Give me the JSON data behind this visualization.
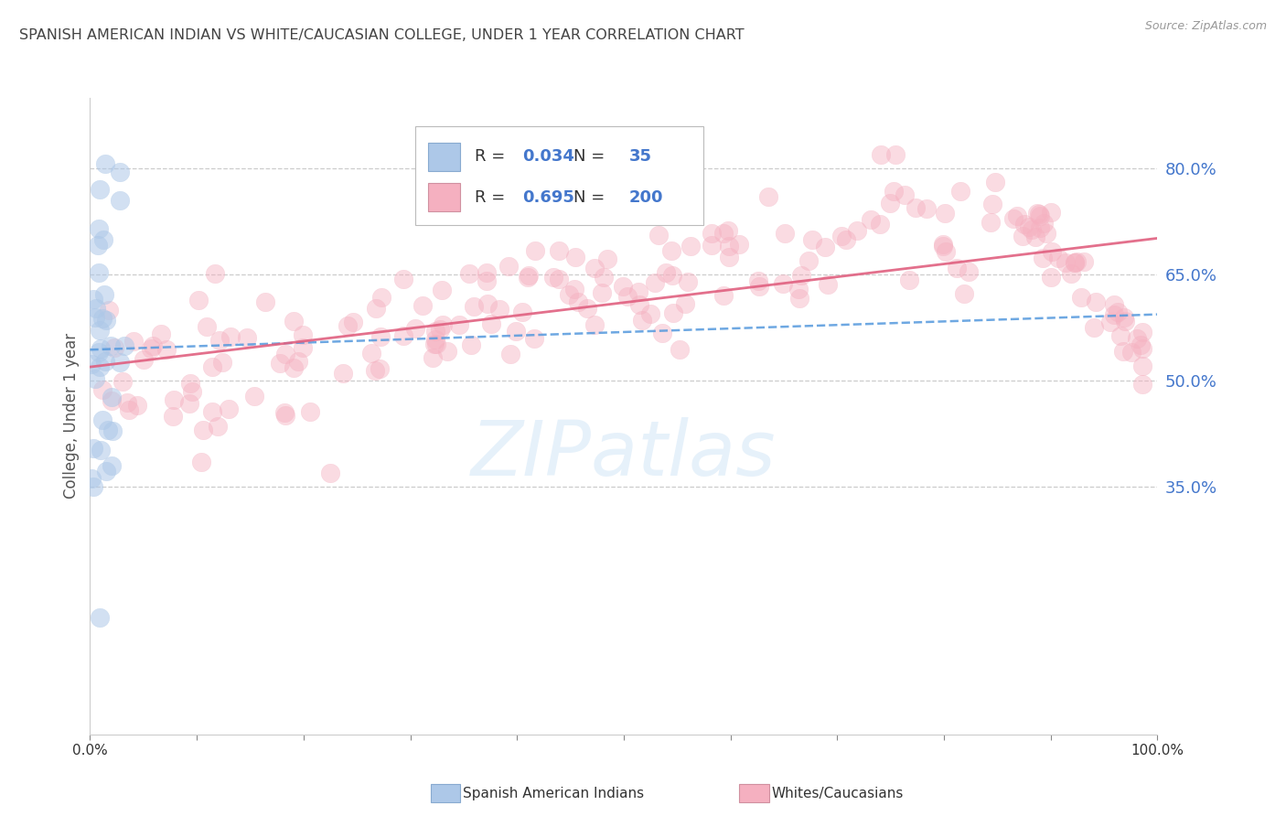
{
  "title": "SPANISH AMERICAN INDIAN VS WHITE/CAUCASIAN COLLEGE, UNDER 1 YEAR CORRELATION CHART",
  "source": "Source: ZipAtlas.com",
  "ylabel": "College, Under 1 year",
  "right_yticks": [
    0.35,
    0.5,
    0.65,
    0.8
  ],
  "right_yticklabels": [
    "35.0%",
    "50.0%",
    "65.0%",
    "80.0%"
  ],
  "legend_entries": [
    {
      "label": "Spanish American Indians",
      "color": "#adc8e8",
      "R": "0.034",
      "N": "35"
    },
    {
      "label": "Whites/Caucasians",
      "color": "#f5b0c0",
      "R": "0.695",
      "N": "200"
    }
  ],
  "bg_color": "#ffffff",
  "title_color": "#444444",
  "source_color": "#999999",
  "axis_label_color": "#555555",
  "right_axis_color": "#4477cc",
  "grid_color": "#cccccc",
  "blue_color": "#adc8e8",
  "pink_color": "#f5b0c0",
  "blue_line_color": "#5599dd",
  "pink_line_color": "#e06080",
  "xlim": [
    0.0,
    1.0
  ],
  "ylim": [
    0.0,
    0.9
  ],
  "blue_r": "0.034",
  "blue_n": "35",
  "pink_r": "0.695",
  "pink_n": "200"
}
